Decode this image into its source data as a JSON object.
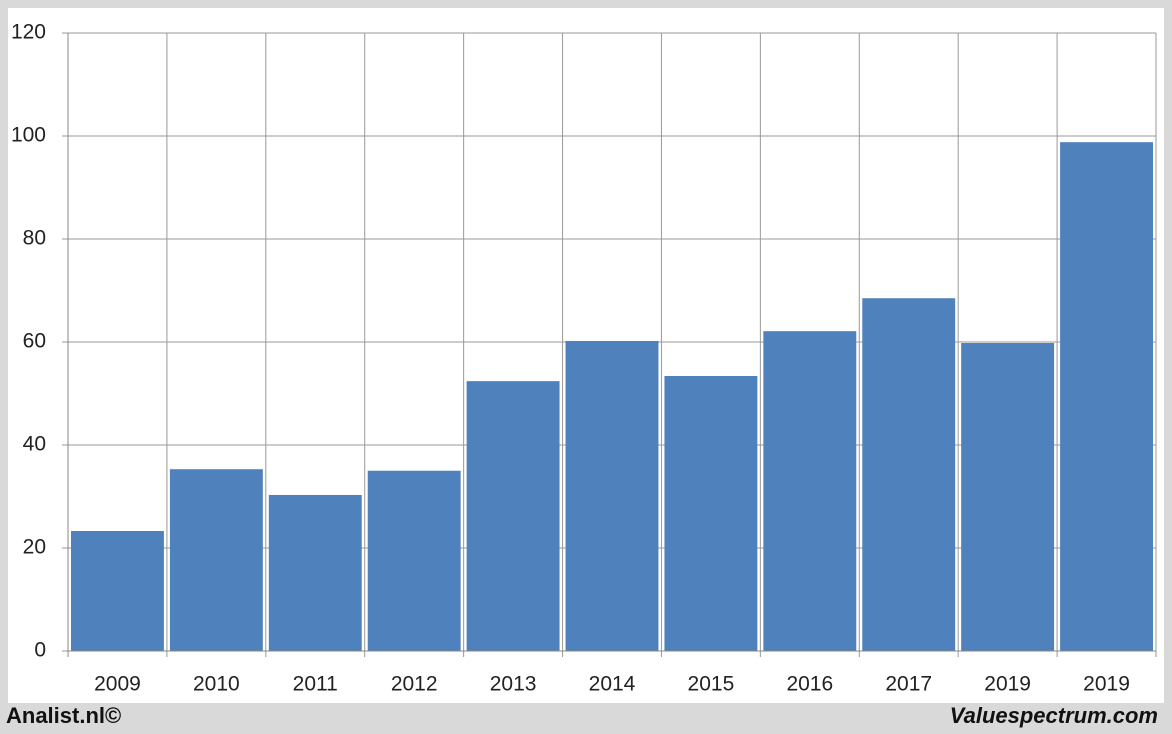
{
  "chart_data": {
    "type": "bar",
    "categories": [
      "2009",
      "2010",
      "2011",
      "2012",
      "2013",
      "2014",
      "2015",
      "2016",
      "2017",
      "2019",
      "2019"
    ],
    "values": [
      23.3,
      35.3,
      30.3,
      35.0,
      52.4,
      60.2,
      53.4,
      62.1,
      68.5,
      59.8,
      98.8
    ],
    "color": "#4f81bd",
    "ylim": [
      0,
      120
    ],
    "yticks": [
      0,
      20,
      40,
      60,
      80,
      100,
      120
    ],
    "grid": true,
    "source_left": "Analist.nl©",
    "source_right": "Valuespectrum.com"
  }
}
